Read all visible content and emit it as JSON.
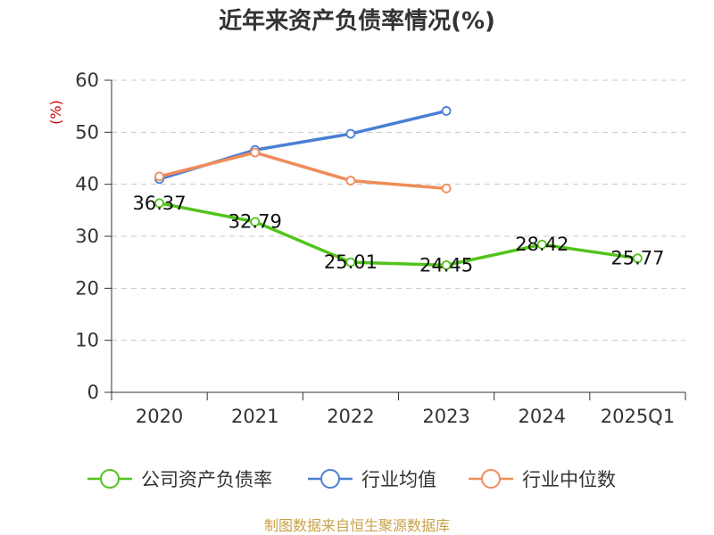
{
  "chart_data": {
    "type": "line",
    "title": "近年来资产负债率情况(%)",
    "ylabel": "(%)",
    "xlabel": "",
    "categories": [
      "2020",
      "2021",
      "2022",
      "2023",
      "2024",
      "2025Q1"
    ],
    "ylim": [
      0,
      60
    ],
    "yticks": [
      "0",
      "10",
      "20",
      "30",
      "40",
      "50",
      "60"
    ],
    "grid": true,
    "legend_position": "bottom",
    "series": [
      {
        "name": "公司资产负债率",
        "color": "#52c41a",
        "values": [
          36.37,
          32.79,
          25.01,
          24.45,
          28.42,
          25.77
        ],
        "labels": [
          "36.37",
          "32.79",
          "25.01",
          "24.45",
          "28.42",
          "25.77"
        ]
      },
      {
        "name": "行业均值",
        "color": "#4a7fd4",
        "values": [
          41.0,
          46.6,
          49.7,
          54.1,
          null,
          null
        ]
      },
      {
        "name": "行业中位数",
        "color": "#f08c5a",
        "values": [
          41.5,
          46.1,
          40.7,
          39.2,
          null,
          null
        ]
      }
    ]
  },
  "footer": {
    "source": "制图数据来自恒生聚源数据库"
  }
}
